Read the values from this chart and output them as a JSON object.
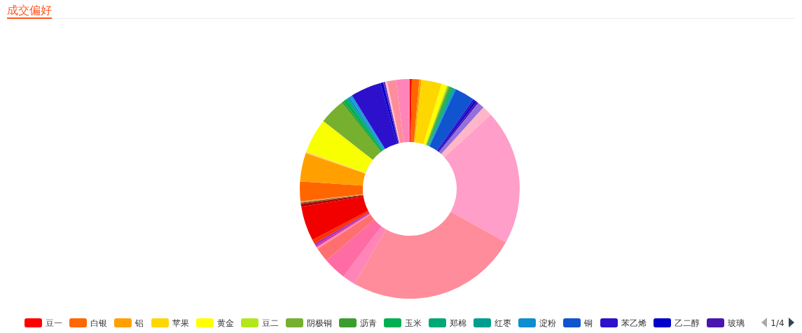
{
  "chart_data": {
    "type": "donut",
    "title": "成交偏好",
    "categories": [
      "豆一",
      "白银",
      "铝",
      "苹果",
      "黄金",
      "豆二",
      "阴极铜",
      "沥青",
      "玉米",
      "郑棉",
      "红枣",
      "淀粉",
      "铜",
      "苯乙烯",
      "乙二醇",
      "玻璃",
      null,
      null,
      null,
      null,
      null,
      null,
      null,
      null,
      null,
      null,
      null,
      null,
      null,
      null,
      null,
      null,
      null,
      null,
      null,
      null,
      null,
      null,
      null,
      null,
      null,
      null,
      null,
      null,
      null,
      null,
      null
    ],
    "values": [
      0.3,
      1.1,
      0.3,
      3.0,
      0.8,
      0.2,
      0.2,
      0.2,
      0.2,
      0.2,
      0.2,
      0.2,
      2.9,
      0.3,
      0.3,
      0.3,
      1.0,
      1.5,
      19.9,
      25.3,
      1.9,
      3.4,
      2.1,
      0.3,
      0.3,
      0.3,
      0.6,
      5.1,
      0.4,
      0.2,
      0.2,
      2.9,
      4.2,
      0.2,
      5.1,
      3.8,
      0.3,
      0.5,
      0.3,
      0.3,
      0.4,
      4.5,
      0.4,
      0.3,
      0.3,
      1.3,
      2.0
    ],
    "colors": [
      "#ff0000",
      "#ff6600",
      "#ffa000",
      "#ffd700",
      "#ffff00",
      "#b5e61d",
      "#77b02e",
      "#3a9e2f",
      "#00b050",
      "#00a878",
      "#009e8f",
      "#0c8ed0",
      "#1154d0",
      "#2d10cc",
      "#0000cc",
      "#4b14b0",
      "#9370db",
      "#ffb6c8",
      "#ff9ec8",
      "#ff8c9b",
      "#ff85b8",
      "#ff6ca4",
      "#ff6f6f",
      "#ff8cb0",
      "#e0309f",
      "#9b30c0",
      "#ff3000",
      "#f20000",
      "#b00000",
      "#8b4513",
      "#d2a060",
      "#ff6600",
      "#ffa000",
      "#ffd060",
      "#f7ff00",
      "#77b02e",
      "#3a9e2f",
      "#00b050",
      "#00a878",
      "#0c8ed0",
      "#1c9ad8",
      "#2d10cc",
      "#0000cc",
      "#6030c0",
      "#ffc0d0",
      "#ff8c9b",
      "#ff85b8"
    ],
    "legend": "bottom",
    "annotations": [
      "1/4"
    ]
  }
}
